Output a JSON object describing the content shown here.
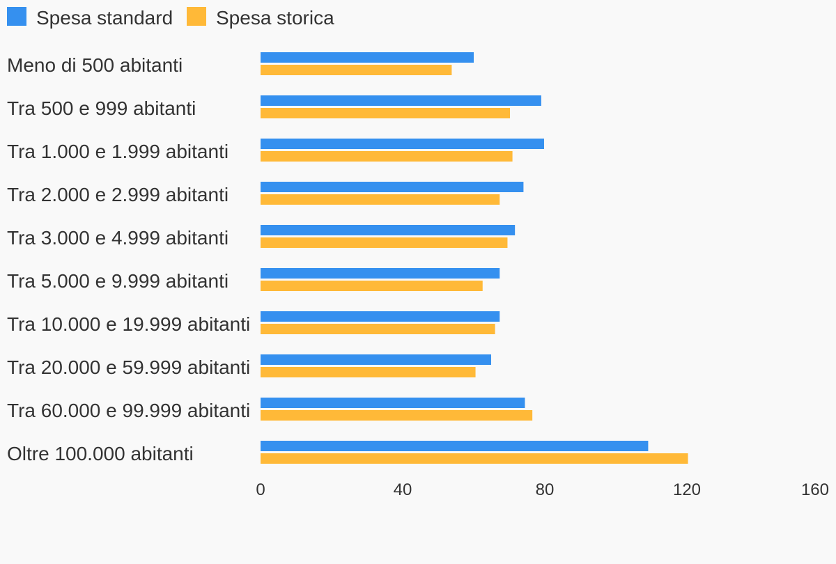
{
  "colors": {
    "standard": "#3590ef",
    "storica": "#ffb938",
    "background": "#f9f9f9",
    "text": "#333333"
  },
  "chart_data": {
    "type": "bar",
    "orientation": "horizontal",
    "categories": [
      "Meno di 500 abitanti",
      "Tra 500 e 999 abitanti",
      "Tra 1.000 e 1.999 abitanti",
      "Tra 2.000 e 2.999 abitanti",
      "Tra 3.000 e 4.999 abitanti",
      "Tra 5.000 e 9.999 abitanti",
      "Tra 10.000 e 19.999 abitanti",
      "Tra 20.000 e 59.999 abitanti",
      "Tra 60.000 e 99.999 abitanti",
      "Oltre 100.000 abitanti"
    ],
    "series": [
      {
        "name": "Spesa standard",
        "color_key": "standard",
        "values": [
          60,
          79,
          79.8,
          74,
          71.6,
          67.3,
          67.3,
          64.9,
          74.4,
          109.1
        ]
      },
      {
        "name": "Spesa storica",
        "color_key": "storica",
        "values": [
          53.8,
          70.2,
          70.9,
          67.3,
          69.5,
          62.5,
          66,
          60.5,
          76.5,
          120.3
        ]
      }
    ],
    "xlim": [
      0,
      160
    ],
    "xticks": [
      "0",
      "40",
      "80",
      "120",
      "160"
    ],
    "legend_position": "top-left",
    "grid": false
  }
}
